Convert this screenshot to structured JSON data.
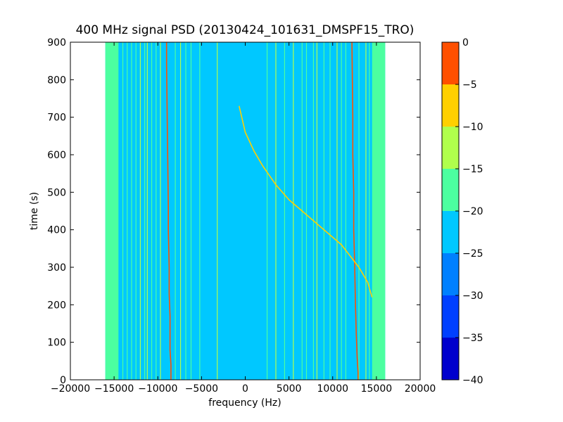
{
  "chart_data": {
    "type": "heatmap",
    "title": "400 MHz signal PSD (20130424_101631_DMSPF15_TRO)",
    "xlabel": "frequency (Hz)",
    "ylabel": "time (s)",
    "xlim": [
      -20000,
      20000
    ],
    "ylim": [
      0,
      900
    ],
    "xticks": [
      -20000,
      -15000,
      -10000,
      -5000,
      0,
      5000,
      10000,
      15000,
      20000
    ],
    "yticks": [
      0,
      100,
      200,
      300,
      400,
      500,
      600,
      700,
      800,
      900
    ],
    "data_extent": {
      "x": [
        -16000,
        16000
      ],
      "y": [
        0,
        900
      ]
    },
    "background_level": -22.5,
    "colorbar": {
      "levels": [
        -40,
        -35,
        -30,
        -25,
        -20,
        -15,
        -10,
        -5,
        0
      ],
      "colors": [
        "#0000cd",
        "#0040ff",
        "#0080ff",
        "#00c8ff",
        "#4cffa0",
        "#b0ff4c",
        "#ffd000",
        "#ff5000",
        "#cc0000"
      ]
    },
    "edge_bands": [
      {
        "x": [
          -16000,
          -14500
        ],
        "level": -17.5
      },
      {
        "x": [
          14500,
          16000
        ],
        "level": -17.5
      }
    ],
    "vertical_lines": [
      {
        "x": -15500,
        "level": -17.5
      },
      {
        "x": -15000,
        "level": -17.5
      },
      {
        "x": -14600,
        "level": -17.5
      },
      {
        "x": -14000,
        "level": -17.5
      },
      {
        "x": -13500,
        "level": -17.5
      },
      {
        "x": -13000,
        "level": -17.5
      },
      {
        "x": -12500,
        "level": -17.5
      },
      {
        "x": -12000,
        "level": -12.5
      },
      {
        "x": -11500,
        "level": -17.5
      },
      {
        "x": -11200,
        "level": -12.5
      },
      {
        "x": -10700,
        "level": -17.5
      },
      {
        "x": -10200,
        "level": -17.5
      },
      {
        "x": -9700,
        "level": -12.5
      },
      {
        "x": -8000,
        "level": -17.5
      },
      {
        "x": -7400,
        "level": -12.5
      },
      {
        "x": -6800,
        "level": -17.5
      },
      {
        "x": -6200,
        "level": -17.5
      },
      {
        "x": -5200,
        "level": -17.5
      },
      {
        "x": -3200,
        "level": -12.5
      },
      {
        "x": 2500,
        "level": -17.5
      },
      {
        "x": 3500,
        "level": -12.5
      },
      {
        "x": 4500,
        "level": -17.5
      },
      {
        "x": 5500,
        "level": -12.5
      },
      {
        "x": 6500,
        "level": -17.5
      },
      {
        "x": 7000,
        "level": -17.5
      },
      {
        "x": 7800,
        "level": -17.5
      },
      {
        "x": 8200,
        "level": -12.5
      },
      {
        "x": 9000,
        "level": -17.5
      },
      {
        "x": 9700,
        "level": -17.5
      },
      {
        "x": 10500,
        "level": -12.5
      },
      {
        "x": 11000,
        "level": -17.5
      },
      {
        "x": 11500,
        "level": -17.5
      },
      {
        "x": 13000,
        "level": -17.5
      },
      {
        "x": 13800,
        "level": -12.5
      },
      {
        "x": 14200,
        "level": -17.5
      }
    ],
    "series": [
      {
        "level": -5,
        "x": [
          -9000,
          -9000,
          -8900,
          -8800,
          -8800,
          -8700,
          -8700,
          -8600,
          -8600,
          -8500,
          -8500
        ],
        "y": [
          900,
          840,
          650,
          460,
          400,
          300,
          230,
          170,
          80,
          40,
          0
        ]
      },
      {
        "level": -5,
        "x": [
          12200,
          12300,
          12300,
          12400,
          12400,
          12500,
          12600,
          12700,
          12800,
          12900,
          12900
        ],
        "y": [
          900,
          700,
          600,
          500,
          400,
          320,
          200,
          120,
          60,
          20,
          0
        ]
      },
      {
        "level": -10,
        "x": [
          -700,
          0,
          1000,
          2000,
          3500,
          5000,
          6500,
          8000,
          9500,
          11000,
          12000,
          13000,
          14000,
          14500
        ],
        "y": [
          730,
          660,
          610,
          570,
          520,
          480,
          450,
          420,
          390,
          360,
          330,
          300,
          260,
          220
        ]
      }
    ]
  }
}
